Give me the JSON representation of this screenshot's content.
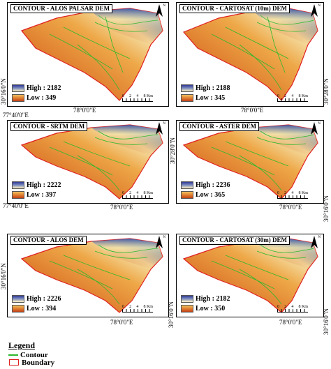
{
  "panels": [
    {
      "title": "CONTOUR - ALOS PALSAR DEM",
      "high": "High : 2182",
      "low": "Low : 349"
    },
    {
      "title": "CONTOUR - CARTOSAT (10m) DEM",
      "high": "High : 2188",
      "low": "Low : 345"
    },
    {
      "title": "CONTOUR - SRTM DEM",
      "high": "High : 2222",
      "low": "Low : 397"
    },
    {
      "title": "CONTOUR - ASTER DEM",
      "high": "High : 2236",
      "low": "Low : 365"
    },
    {
      "title": "CONTOUR - ALOS DEM",
      "high": "High : 2226",
      "low": "Low : 394"
    },
    {
      "title": "CONTOUR - CARTOSAT (30m) DEM",
      "high": "High : 2182",
      "low": "Low : 350"
    }
  ],
  "scalebar": {
    "labels": [
      "0",
      "2",
      "4",
      "8 Km"
    ]
  },
  "north": "N",
  "coords": {
    "lon_78": "78°0'0\"E",
    "lon_77_40": "77°40'0\"E",
    "lat_30_16": "30°16'0\"N",
    "lat_30_28": "30°28'0\"N",
    "lat_30_16_alt": "30°16'0\"N"
  },
  "legend": {
    "title": "Legend",
    "contour": "Contour",
    "boundary": "Boundary"
  },
  "colors": {
    "contour": "#2db82d",
    "boundary": "#e02020",
    "high": "#303a96",
    "low": "#c04018"
  }
}
